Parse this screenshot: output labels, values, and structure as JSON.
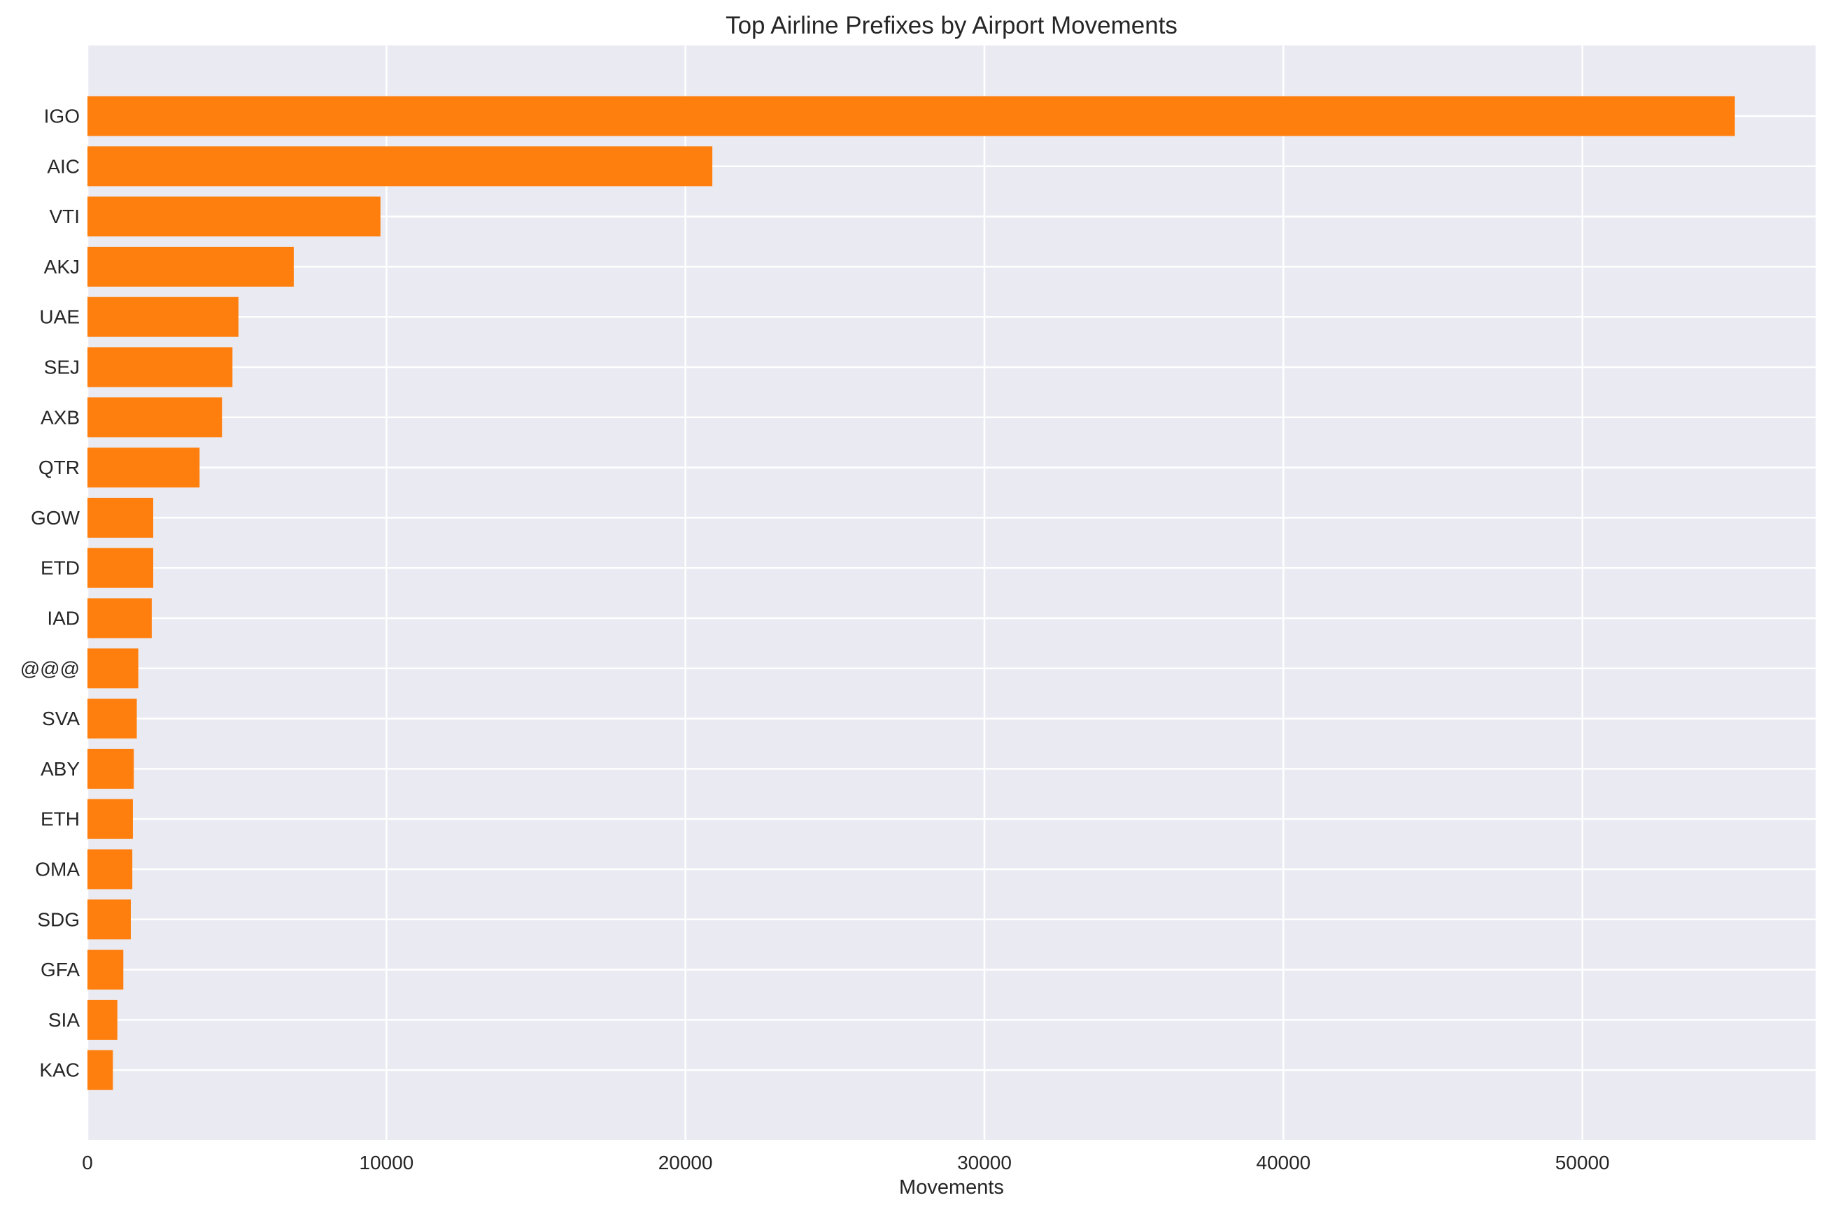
{
  "chart_data": {
    "type": "bar",
    "orientation": "horizontal",
    "title": "Top Airline Prefixes by Airport Movements",
    "xlabel": "Movements",
    "ylabel": "",
    "categories": [
      "IGO",
      "AIC",
      "VTI",
      "AKJ",
      "UAE",
      "SEJ",
      "AXB",
      "QTR",
      "GOW",
      "ETD",
      "IAD",
      "@@@",
      "SVA",
      "ABY",
      "ETH",
      "OMA",
      "SDG",
      "GFA",
      "SIA",
      "KAC"
    ],
    "values": [
      55100,
      20900,
      9800,
      6900,
      5050,
      4850,
      4500,
      3750,
      2200,
      2200,
      2150,
      1700,
      1650,
      1550,
      1520,
      1500,
      1450,
      1200,
      1000,
      850
    ],
    "xlim": [
      0,
      57800
    ],
    "xticks": [
      0,
      10000,
      20000,
      30000,
      40000,
      50000
    ],
    "xtick_labels": [
      "0",
      "10000",
      "20000",
      "30000",
      "40000",
      "50000"
    ],
    "grid": true,
    "legend": "none",
    "colors": {
      "bar": "#ff7f0e",
      "plot_background": "#eaeaf2",
      "grid": "#ffffff",
      "text": "#262626"
    }
  }
}
